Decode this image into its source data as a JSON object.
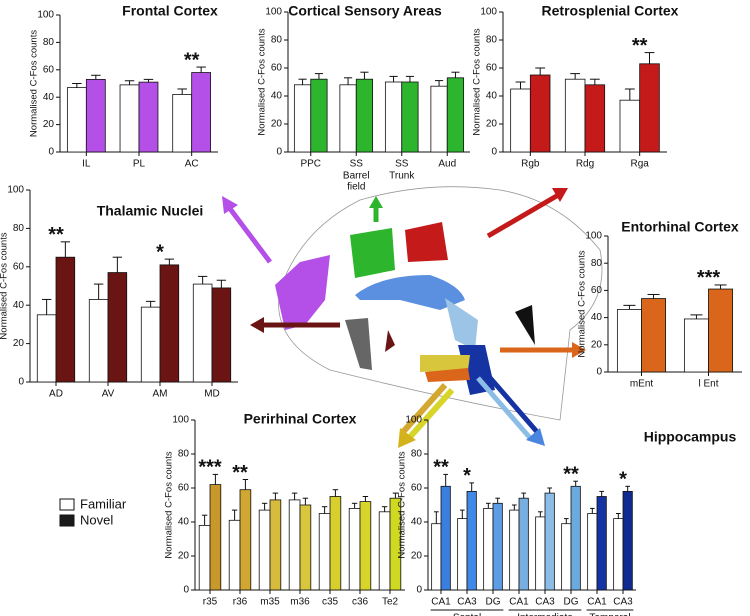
{
  "chart_data": [
    {
      "type": "bar",
      "title": "Frontal Cortex",
      "title_color": "#b04ee8",
      "ylabel": "Normalised C-Fos counts",
      "categories": [
        "IL",
        "PL",
        "AC"
      ],
      "ylim": [
        0,
        100
      ],
      "yticks": [
        0,
        20,
        40,
        60,
        80,
        100
      ],
      "series": [
        {
          "name": "Familiar",
          "color": "#ffffff",
          "values": [
            47,
            49,
            42
          ],
          "errors": [
            3,
            3,
            4
          ]
        },
        {
          "name": "Novel",
          "color": "#b44fe8",
          "values": [
            53,
            51,
            58
          ],
          "errors": [
            3,
            2,
            4
          ]
        }
      ],
      "stars": [
        {
          "index": 2,
          "label": "**"
        }
      ],
      "legend": true,
      "legend_colors": [
        "#ffffff",
        "#1a1a1a"
      ],
      "legend_corner": "bottom-left"
    },
    {
      "type": "bar",
      "title": "Cortical Sensory Areas",
      "title_color": "#2db52d",
      "ylabel": "Normalised C-Fos counts",
      "categories": [
        "PPC",
        "SS",
        "SS",
        "Aud"
      ],
      "ylim": [
        0,
        100
      ],
      "yticks": [
        0,
        20,
        40,
        60,
        80,
        100
      ],
      "sublabels": [
        {
          "index": 1,
          "lines": [
            "Barrel",
            "field"
          ]
        },
        {
          "index": 2,
          "lines": [
            "Trunk"
          ]
        }
      ],
      "series": [
        {
          "name": "Familiar",
          "color": "#ffffff",
          "values": [
            48,
            48,
            50,
            47
          ],
          "errors": [
            4,
            5,
            4,
            4
          ]
        },
        {
          "name": "Novel",
          "color": "#2db52d",
          "values": [
            52,
            52,
            50,
            53
          ],
          "errors": [
            4,
            5,
            4,
            4
          ]
        }
      ],
      "stars": []
    },
    {
      "type": "bar",
      "title": "Retrosplenial Cortex",
      "title_color": "#c41a1a",
      "ylabel": "Normalised C-Fos counts",
      "categories": [
        "Rgb",
        "Rdg",
        "Rga"
      ],
      "ylim": [
        0,
        100
      ],
      "yticks": [
        0,
        20,
        40,
        60,
        80,
        100
      ],
      "series": [
        {
          "name": "Familiar",
          "color": "#ffffff",
          "values": [
            45,
            52,
            37
          ],
          "errors": [
            5,
            4,
            8
          ]
        },
        {
          "name": "Novel",
          "color": "#c41a1a",
          "values": [
            55,
            48,
            63
          ],
          "errors": [
            5,
            4,
            8
          ]
        }
      ],
      "stars": [
        {
          "index": 2,
          "label": "**"
        }
      ]
    },
    {
      "type": "bar",
      "title": "Thalamic Nuclei",
      "title_color": "#6b1414",
      "ylabel": "Normalised C-Fos counts",
      "categories": [
        "AD",
        "AV",
        "AM",
        "MD"
      ],
      "ylim": [
        0,
        100
      ],
      "yticks": [
        0,
        20,
        40,
        60,
        80,
        100
      ],
      "series": [
        {
          "name": "Familiar",
          "color": "#ffffff",
          "values": [
            35,
            43,
            39,
            51
          ],
          "errors": [
            8,
            8,
            3,
            4
          ]
        },
        {
          "name": "Novel",
          "color": "#6b1414",
          "values": [
            65,
            57,
            61,
            49
          ],
          "errors": [
            8,
            8,
            3,
            4
          ]
        }
      ],
      "stars": [
        {
          "index": 0,
          "label": "**"
        },
        {
          "index": 2,
          "label": "*"
        }
      ]
    },
    {
      "type": "bar",
      "title": "Entorhinal Cortex",
      "title_color": "#d9661a",
      "ylabel": "Normalised C-Fos counts",
      "categories": [
        "mEnt",
        "l Ent"
      ],
      "ylim": [
        0,
        100
      ],
      "yticks": [
        0,
        20,
        40,
        60,
        80,
        100
      ],
      "series": [
        {
          "name": "Familiar",
          "color": "#ffffff",
          "values": [
            46,
            39
          ],
          "errors": [
            3,
            3
          ]
        },
        {
          "name": "Novel",
          "color": "#d9661a",
          "values": [
            54,
            61
          ],
          "errors": [
            3,
            3
          ]
        }
      ],
      "stars": [
        {
          "index": 1,
          "label": "***"
        }
      ]
    },
    {
      "type": "bar",
      "title": "Perirhinal Cortex",
      "title_color": "#d4b21c",
      "ylabel": "Normalised C-Fos counts",
      "categories": [
        "r35",
        "r36",
        "m35",
        "m36",
        "c35",
        "c36",
        "Te2"
      ],
      "ylim": [
        0,
        100
      ],
      "yticks": [
        0,
        20,
        40,
        60,
        80,
        100
      ],
      "series": [
        {
          "name": "Familiar",
          "color": "#ffffff",
          "values": [
            38,
            41,
            47,
            53,
            45,
            48,
            46
          ],
          "errors": [
            6,
            6,
            4,
            4,
            4,
            3,
            3
          ]
        },
        {
          "name": "Novel",
          "colors": [
            "#c9982a",
            "#d1a631",
            "#d6bb3c",
            "#d8c63d",
            "#d6cf2e",
            "#d8d52a",
            "#cfd921"
          ],
          "values": [
            62,
            59,
            53,
            50,
            55,
            52,
            54
          ],
          "errors": [
            6,
            6,
            4,
            4,
            4,
            3,
            3
          ]
        }
      ],
      "stars": [
        {
          "index": 0,
          "label": "***"
        },
        {
          "index": 1,
          "label": "**"
        }
      ]
    },
    {
      "type": "bar",
      "title": "Hippocampus",
      "title_color": "#4a86e0",
      "ylabel": "Normalised C-Fos counts",
      "categories": [
        "CA1",
        "CA3",
        "DG",
        "CA1",
        "CA3",
        "DG",
        "CA1",
        "CA3"
      ],
      "ylim": [
        0,
        100
      ],
      "yticks": [
        0,
        20,
        40,
        60,
        80,
        100
      ],
      "groups": [
        {
          "name": "Septal",
          "start": 0,
          "end": 2
        },
        {
          "name": "Intermediate",
          "start": 3,
          "end": 5
        },
        {
          "name": "Temporal",
          "start": 6,
          "end": 7
        }
      ],
      "series": [
        {
          "name": "Familiar",
          "color": "#ffffff",
          "values": [
            39,
            42,
            48,
            47,
            43,
            39,
            45,
            42
          ],
          "errors": [
            7,
            5,
            3,
            3,
            3,
            3,
            3,
            3
          ]
        },
        {
          "name": "Novel",
          "colors": [
            "#3a7fe0",
            "#4089e6",
            "#5d9de6",
            "#79afe0",
            "#8cbde6",
            "#6aaade",
            "#1533a2",
            "#0d2b90"
          ],
          "values": [
            61,
            58,
            51,
            54,
            57,
            61,
            55,
            58
          ],
          "errors": [
            7,
            5,
            3,
            3,
            3,
            3,
            3,
            3
          ]
        }
      ],
      "stars": [
        {
          "index": 0,
          "label": "**"
        },
        {
          "index": 1,
          "label": "*"
        },
        {
          "index": 5,
          "label": "**"
        },
        {
          "index": 7,
          "label": "*"
        }
      ]
    }
  ]
}
